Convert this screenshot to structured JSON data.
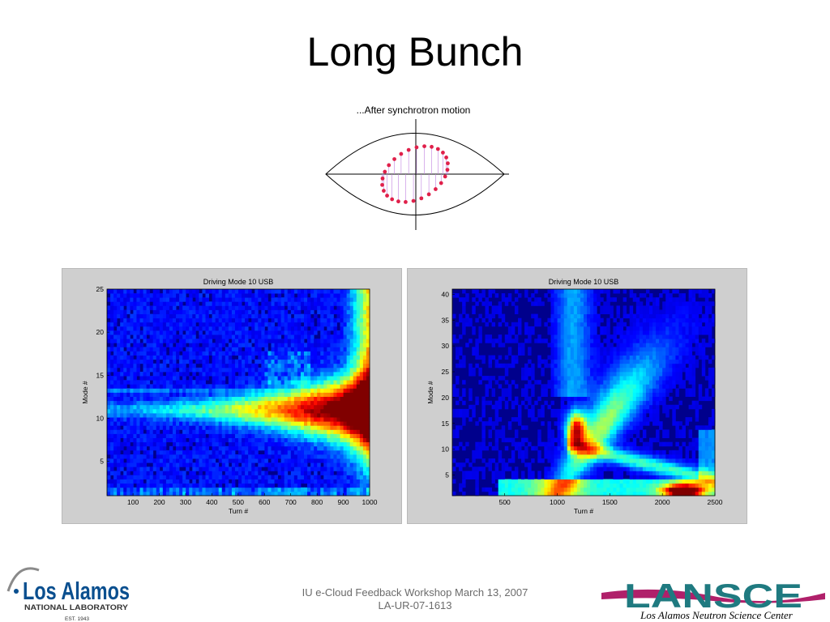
{
  "slide": {
    "title": "Long Bunch"
  },
  "diagram": {
    "caption": "...After  synchrotron  motion"
  },
  "chart_data": [
    {
      "type": "heatmap",
      "title": "Driving Mode 10 USB",
      "xlabel": "Turn #",
      "ylabel": "Mode #",
      "xlim": [
        1,
        1000
      ],
      "ylim": [
        1,
        25
      ],
      "xticks": [
        100,
        200,
        300,
        400,
        500,
        600,
        700,
        800,
        900,
        1000
      ],
      "yticks": [
        5,
        10,
        15,
        20,
        25
      ],
      "colormap": "jet"
    },
    {
      "type": "heatmap",
      "title": "Driving Mode 10 USB",
      "xlabel": "Turn #",
      "ylabel": "Mode #",
      "xlim": [
        1,
        2500
      ],
      "ylim": [
        1,
        41
      ],
      "xticks": [
        500,
        1000,
        1500,
        2000,
        2500
      ],
      "yticks": [
        5,
        10,
        15,
        20,
        25,
        30,
        35,
        40
      ],
      "colormap": "jet"
    }
  ],
  "footer": {
    "line1": "IU e-Cloud Feedback Workshop March 13, 2007",
    "line2": "LA-UR-07-1613"
  },
  "logos": {
    "lanl_name": "Los Alamos",
    "lanl_sub": "NATIONAL LABORATORY",
    "lanl_est": "EST. 1943",
    "lansce_name": "LANSCE",
    "lansce_sub": "Los Alamos Neutron Science Center"
  },
  "colors": {
    "diagram_dots": "#e0204a",
    "lansce_teal": "#1f7a80",
    "lansce_magenta": "#b0206a",
    "lanl_blue": "#0a4f8f",
    "lanl_gray": "#8a8a8a"
  }
}
